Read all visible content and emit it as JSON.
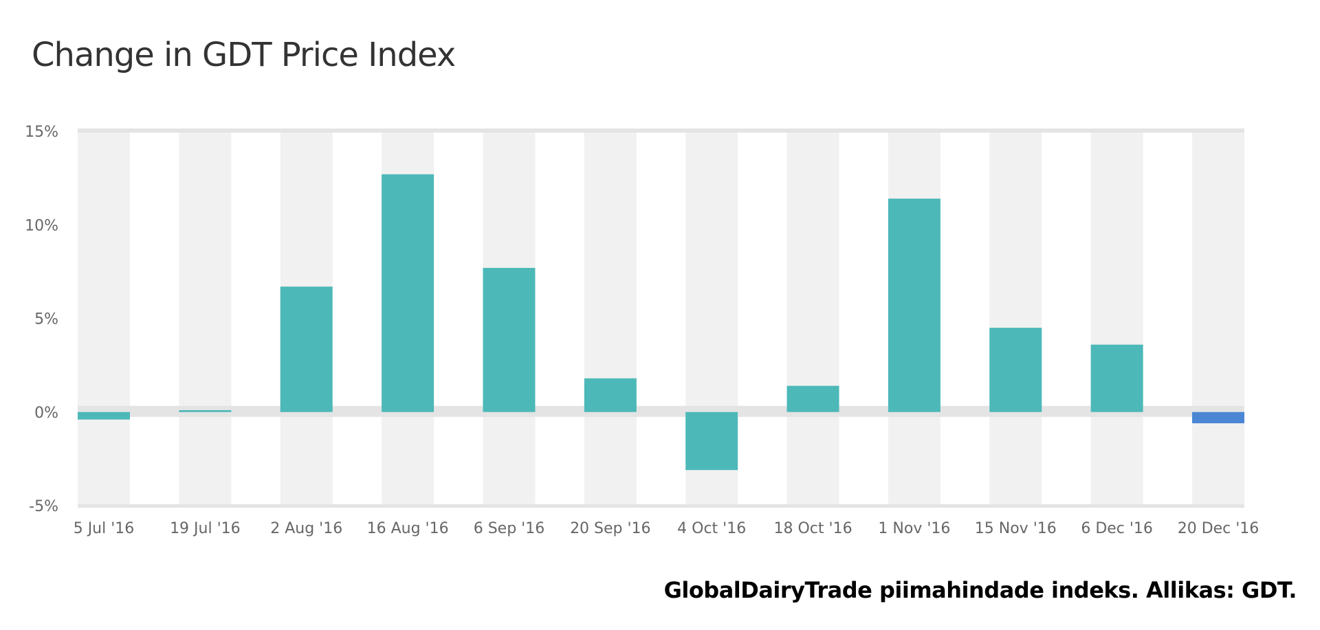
{
  "chart_data": {
    "type": "bar",
    "title": "Change in GDT Price Index",
    "xlabel": "",
    "ylabel": "",
    "ylim": [
      -5,
      15
    ],
    "yticks": [
      -5,
      0,
      5,
      10,
      15
    ],
    "ytick_labels": [
      "-5%",
      "0%",
      "5%",
      "10%",
      "15%"
    ],
    "categories": [
      "5 Jul '16",
      "19 Jul '16",
      "2 Aug '16",
      "16 Aug '16",
      "6 Sep '16",
      "20 Sep '16",
      "4 Oct '16",
      "18 Oct '16",
      "1 Nov '16",
      "15 Nov '16",
      "6 Dec '16",
      "20 Dec '16"
    ],
    "values": [
      -0.4,
      0.1,
      6.7,
      12.7,
      7.7,
      1.8,
      -3.1,
      1.4,
      11.4,
      4.5,
      3.6,
      -0.6
    ],
    "colors": {
      "default": "#4db8b8",
      "highlight": "#4a86d4",
      "band": "#f1f1f1",
      "zero_band": "#e4e4e4"
    },
    "highlight_index": 11,
    "grid": false,
    "legend": "none"
  },
  "footer": "GlobalDairyTrade piimahindade indeks. Allikas: GDT."
}
